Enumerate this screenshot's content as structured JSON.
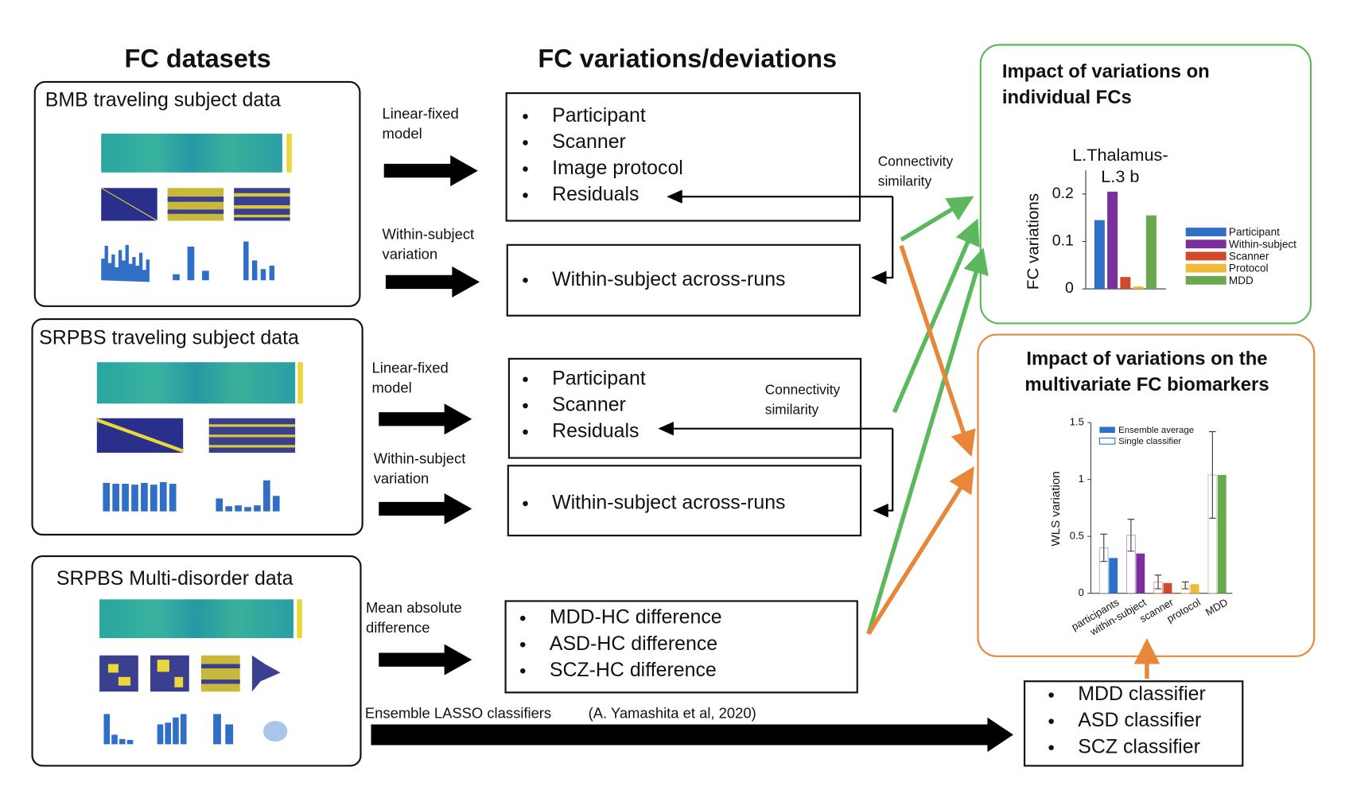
{
  "headings": {
    "datasets": "FC datasets",
    "variations": "FC variations/deviations"
  },
  "datasets": [
    {
      "title": "BMB traveling subject data"
    },
    {
      "title": "SRPBS traveling subject data"
    },
    {
      "title": "SRPBS Multi-disorder data"
    }
  ],
  "arrow_labels": [
    [
      "Linear-fixed",
      "model"
    ],
    [
      "Within-subject",
      "variation"
    ],
    [
      "Linear-fixed",
      "model"
    ],
    [
      "Within-subject",
      "variation"
    ],
    [
      "Mean absolute",
      "difference"
    ]
  ],
  "lasso": {
    "label": "Ensemble LASSO classifiers",
    "citation": "(A. Yamashita et al, 2020)"
  },
  "boxes": [
    {
      "items": [
        "Participant",
        "Scanner",
        "Image protocol",
        "Residuals"
      ]
    },
    {
      "items": [
        "Within-subject across-runs"
      ]
    },
    {
      "items": [
        "Participant",
        "Scanner",
        "Residuals"
      ]
    },
    {
      "items": [
        "Within-subject across-runs"
      ]
    },
    {
      "items": [
        "MDD-HC difference",
        "ASD-HC difference",
        "SCZ-HC difference"
      ]
    }
  ],
  "similarity_labels": [
    [
      "Connectivity",
      "similarity"
    ],
    [
      "Connectivity",
      "similarity"
    ]
  ],
  "classifiers": {
    "items": [
      "MDD classifier",
      "ASD classifier",
      "SCZ classifier"
    ]
  },
  "fc_panel": {
    "title": [
      "Impact of variations on",
      "individual FCs"
    ],
    "chart": {
      "type": "bar",
      "title": [
        "L.Thalamus-",
        "L.3 b"
      ],
      "ylabel": "FC variations",
      "ylim": [
        0,
        0.25
      ],
      "yticks": [
        0,
        0.1,
        0.2
      ],
      "series": [
        {
          "name": "Participant",
          "color": "#2f6fc6",
          "value": 0.145
        },
        {
          "name": "Within-subject",
          "color": "#7a2f9c",
          "value": 0.205
        },
        {
          "name": "Scanner",
          "color": "#d04a2a",
          "value": 0.025
        },
        {
          "name": "Protocol",
          "color": "#f0b93a",
          "value": 0.005
        },
        {
          "name": "MDD",
          "color": "#6aa84f",
          "value": 0.155
        }
      ]
    }
  },
  "wls_panel": {
    "title": [
      "Impact of variations on the",
      "multivariate FC biomarkers"
    ],
    "chart": {
      "type": "bar",
      "ylabel": "WLS variation",
      "ylim": [
        0,
        1.5
      ],
      "yticks": [
        0,
        0.5,
        1,
        1.5
      ],
      "categories": [
        "participants",
        "within-subject",
        "scanner",
        "protocol",
        "MDD"
      ],
      "colors": [
        "#2f6fc6",
        "#7a2f9c",
        "#d04a2a",
        "#f0b93a",
        "#6aa84f"
      ],
      "series": [
        {
          "name": "Single classifier",
          "values": [
            0.4,
            0.51,
            0.1,
            0.07,
            1.04
          ],
          "errors": [
            0.12,
            0.14,
            0.06,
            0.03,
            0.38
          ]
        },
        {
          "name": "Ensemble average",
          "values": [
            0.31,
            0.35,
            0.09,
            0.08,
            1.04
          ]
        }
      ]
    }
  }
}
